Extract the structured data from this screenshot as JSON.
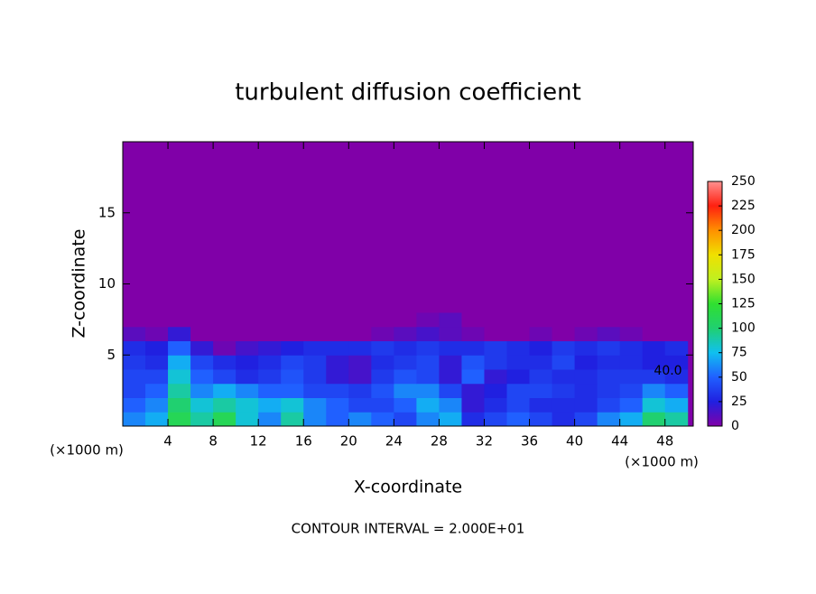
{
  "chart_data": {
    "type": "heatmap",
    "title": "turbulent diffusion coefficient",
    "x_label": "X-coordinate",
    "y_label": "Z-coordinate",
    "x_unit_left": "(×1000 m)",
    "x_unit_right": "(×1000 m)",
    "footnote": "CONTOUR INTERVAL = 2.000E+01",
    "annotation": "40.0",
    "xlim": [
      0,
      50.5
    ],
    "ylim": [
      0,
      20
    ],
    "xticks": [
      4,
      8,
      12,
      16,
      20,
      24,
      28,
      32,
      36,
      40,
      44,
      48
    ],
    "yticks": [
      5,
      10,
      15
    ],
    "x": [
      0,
      2,
      4,
      6,
      8,
      10,
      12,
      14,
      16,
      18,
      20,
      22,
      24,
      26,
      28,
      30,
      32,
      34,
      36,
      38,
      40,
      42,
      44,
      46,
      48,
      50
    ],
    "y": [
      0,
      1,
      2,
      3,
      4,
      5,
      6,
      7,
      8,
      20
    ],
    "values": [
      [
        60,
        70,
        110,
        90,
        110,
        80,
        60,
        90,
        60,
        50,
        60,
        50,
        40,
        60,
        70,
        30,
        40,
        50,
        40,
        30,
        40,
        60,
        70,
        100,
        90
      ],
      [
        50,
        60,
        100,
        80,
        90,
        80,
        70,
        80,
        60,
        50,
        40,
        40,
        50,
        70,
        60,
        20,
        30,
        40,
        30,
        30,
        30,
        40,
        50,
        80,
        70
      ],
      [
        40,
        50,
        90,
        60,
        70,
        60,
        50,
        50,
        40,
        40,
        35,
        45,
        60,
        60,
        40,
        20,
        25,
        40,
        40,
        35,
        30,
        35,
        40,
        60,
        50
      ],
      [
        40,
        40,
        80,
        50,
        40,
        30,
        35,
        45,
        35,
        20,
        15,
        35,
        45,
        40,
        20,
        50,
        20,
        25,
        35,
        30,
        30,
        35,
        35,
        35,
        30
      ],
      [
        35,
        30,
        70,
        40,
        30,
        25,
        30,
        40,
        35,
        20,
        15,
        30,
        35,
        40,
        20,
        45,
        35,
        30,
        30,
        40,
        25,
        30,
        30,
        25,
        25
      ],
      [
        30,
        25,
        50,
        20,
        5,
        15,
        20,
        25,
        30,
        30,
        30,
        35,
        30,
        35,
        30,
        30,
        35,
        30,
        25,
        35,
        30,
        35,
        30,
        25,
        30
      ],
      [
        10,
        5,
        20,
        0,
        0,
        0,
        0,
        0,
        0,
        0,
        0,
        5,
        10,
        15,
        10,
        5,
        0,
        0,
        5,
        0,
        5,
        10,
        5,
        0,
        0
      ],
      [
        0,
        0,
        0,
        0,
        0,
        0,
        0,
        0,
        0,
        0,
        0,
        0,
        0,
        5,
        10,
        0,
        0,
        0,
        0,
        0,
        0,
        0,
        0,
        0,
        0
      ],
      [
        0,
        0,
        0,
        0,
        0,
        0,
        0,
        0,
        0,
        0,
        0,
        0,
        0,
        0,
        0,
        0,
        0,
        0,
        0,
        0,
        0,
        0,
        0,
        0,
        0
      ]
    ],
    "zlim": [
      0,
      250
    ],
    "zticks": [
      0,
      25,
      50,
      75,
      100,
      125,
      150,
      175,
      200,
      225,
      250
    ],
    "colors": [
      "#8000a8",
      "#2020e0",
      "#2060ff",
      "#10c0f0",
      "#20d070",
      "#30e030",
      "#c0f020",
      "#f0e000",
      "#ff9000",
      "#ff2010",
      "#ff9090"
    ]
  }
}
